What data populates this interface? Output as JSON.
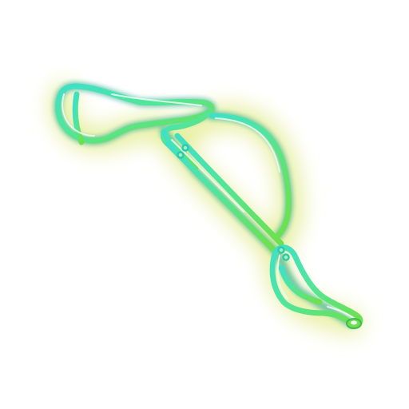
{
  "icon": {
    "name": "eyelash-curler-icon",
    "style": "neon-glow",
    "colors": {
      "glow": "#d9e66a",
      "tube_start": "#3fe0c8",
      "tube_mid": "#52e59a",
      "tube_end": "#6fe04a",
      "highlight": "#eafff6",
      "background": "#ffffff"
    }
  }
}
